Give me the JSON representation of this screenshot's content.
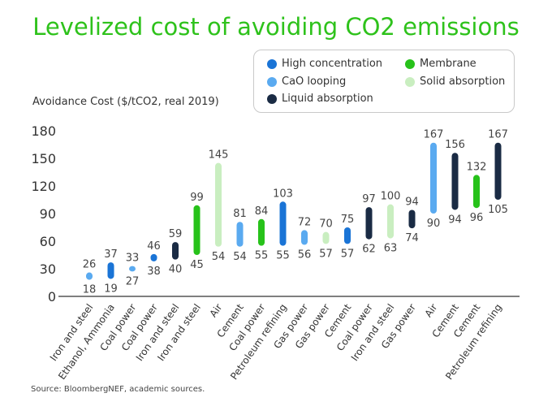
{
  "chart_data": {
    "type": "bar",
    "subtype": "floating-range",
    "title": "Levelized cost of avoiding CO2 emissions",
    "ylabel": "Avoidance Cost ($/tCO2, real 2019)",
    "ylim": [
      0,
      180
    ],
    "yticks": [
      0,
      30,
      60,
      90,
      120,
      150,
      180
    ],
    "grid": false,
    "legend_position": "top-right",
    "legend": [
      {
        "name": "High concentration",
        "color": "#1a74d6"
      },
      {
        "name": "CaO looping",
        "color": "#5aaaf0"
      },
      {
        "name": "Liquid absorption",
        "color": "#1a2b44"
      },
      {
        "name": "Membrane",
        "color": "#27c21a"
      },
      {
        "name": "Solid absorption",
        "color": "#c9eec0"
      }
    ],
    "categories": [
      "Iron and steel",
      "Ethanol, Ammonia",
      "Coal power",
      "Coal power",
      "Iron and steel",
      "Iron and steel",
      "Air",
      "Cement",
      "Coal power",
      "Petroleum refining",
      "Gas power",
      "Gas power",
      "Cement",
      "Coal power",
      "Iron and steel",
      "Gas power",
      "Air",
      "Cement",
      "Cement",
      "Petroleum refining"
    ],
    "bars": [
      {
        "low": 18,
        "high": 26,
        "series": "CaO looping"
      },
      {
        "low": 19,
        "high": 37,
        "series": "High concentration"
      },
      {
        "low": 27,
        "high": 33,
        "series": "CaO looping"
      },
      {
        "low": 38,
        "high": 46,
        "series": "High concentration"
      },
      {
        "low": 40,
        "high": 59,
        "series": "Liquid absorption"
      },
      {
        "low": 45,
        "high": 99,
        "series": "Membrane"
      },
      {
        "low": 54,
        "high": 145,
        "series": "Solid absorption"
      },
      {
        "low": 54,
        "high": 81,
        "series": "CaO looping"
      },
      {
        "low": 55,
        "high": 84,
        "series": "Membrane"
      },
      {
        "low": 55,
        "high": 103,
        "series": "High concentration"
      },
      {
        "low": 56,
        "high": 72,
        "series": "CaO looping"
      },
      {
        "low": 57,
        "high": 70,
        "series": "Solid absorption"
      },
      {
        "low": 57,
        "high": 75,
        "series": "High concentration"
      },
      {
        "low": 62,
        "high": 97,
        "series": "Liquid absorption"
      },
      {
        "low": 63,
        "high": 100,
        "series": "Solid absorption"
      },
      {
        "low": 74,
        "high": 94,
        "series": "Liquid absorption"
      },
      {
        "low": 90,
        "high": 167,
        "series": "CaO looping"
      },
      {
        "low": 94,
        "high": 156,
        "series": "Liquid absorption"
      },
      {
        "low": 96,
        "high": 132,
        "series": "Membrane"
      },
      {
        "low": 105,
        "high": 167,
        "series": "Liquid absorption"
      }
    ]
  },
  "source": "Source: BloombergNEF, academic sources."
}
